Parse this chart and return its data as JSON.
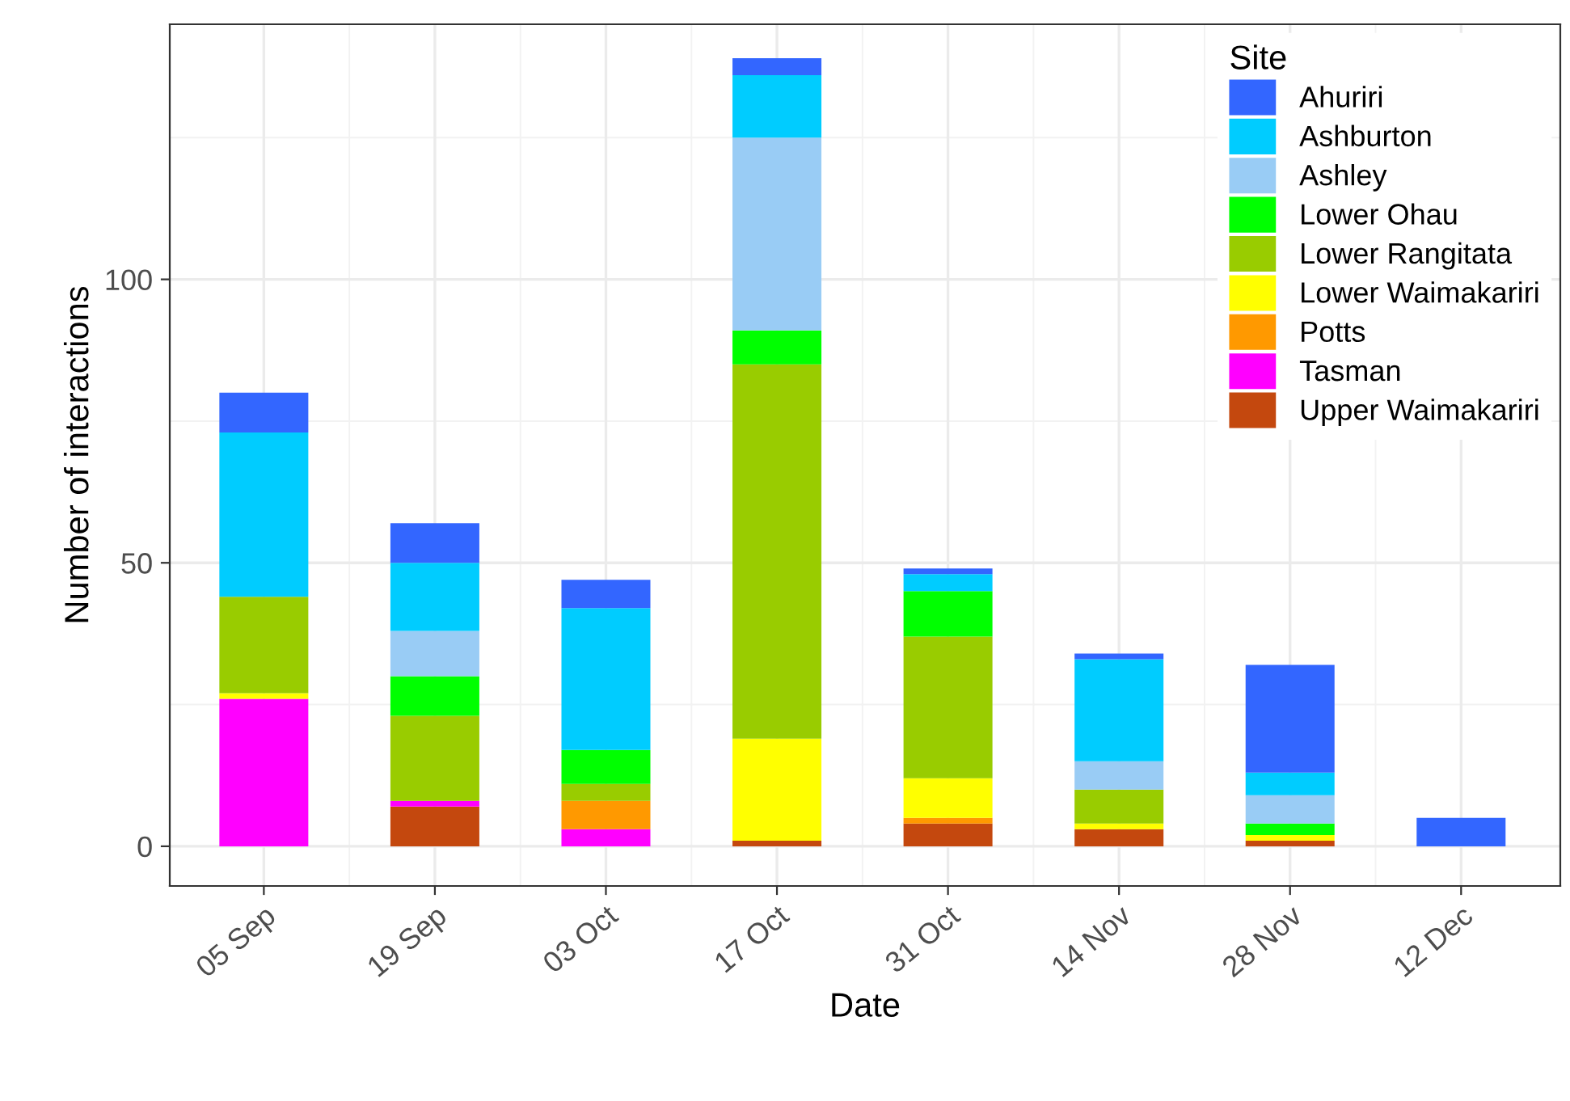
{
  "chart_data": {
    "type": "bar",
    "stacked": true,
    "xlabel": "Date",
    "ylabel": "Number of interactions",
    "legend_title": "Site",
    "categories": [
      "05 Sep",
      "19 Sep",
      "03 Oct",
      "17 Oct",
      "31 Oct",
      "14 Nov",
      "28 Nov",
      "12 Dec"
    ],
    "series": [
      {
        "name": "Upper Waimakariri",
        "color": "#c4480e",
        "values": [
          0,
          7,
          0,
          1,
          4,
          3,
          1,
          0
        ]
      },
      {
        "name": "Tasman",
        "color": "#ff00ff",
        "values": [
          26,
          1,
          3,
          0,
          0,
          0,
          0,
          0
        ]
      },
      {
        "name": "Potts",
        "color": "#ff9900",
        "values": [
          0,
          0,
          5,
          0,
          1,
          0,
          0,
          0
        ]
      },
      {
        "name": "Lower Waimakariri",
        "color": "#ffff00",
        "values": [
          1,
          0,
          0,
          18,
          7,
          1,
          1,
          0
        ]
      },
      {
        "name": "Lower Rangitata",
        "color": "#99cc00",
        "values": [
          17,
          15,
          3,
          66,
          25,
          6,
          0,
          0
        ]
      },
      {
        "name": "Lower Ohau",
        "color": "#00ff00",
        "values": [
          0,
          7,
          6,
          6,
          8,
          0,
          2,
          0
        ]
      },
      {
        "name": "Ashley",
        "color": "#99ccf5",
        "values": [
          0,
          8,
          0,
          34,
          0,
          5,
          5,
          0
        ]
      },
      {
        "name": "Ashburton",
        "color": "#00ccff",
        "values": [
          29,
          12,
          25,
          11,
          3,
          18,
          4,
          0
        ]
      },
      {
        "name": "Ahuriri",
        "color": "#3366ff",
        "values": [
          7,
          7,
          5,
          3,
          1,
          1,
          19,
          5
        ]
      }
    ],
    "ylim": [
      -7,
      145
    ],
    "yticks": [
      0,
      50,
      100
    ],
    "grid": true,
    "legend": "top right"
  }
}
